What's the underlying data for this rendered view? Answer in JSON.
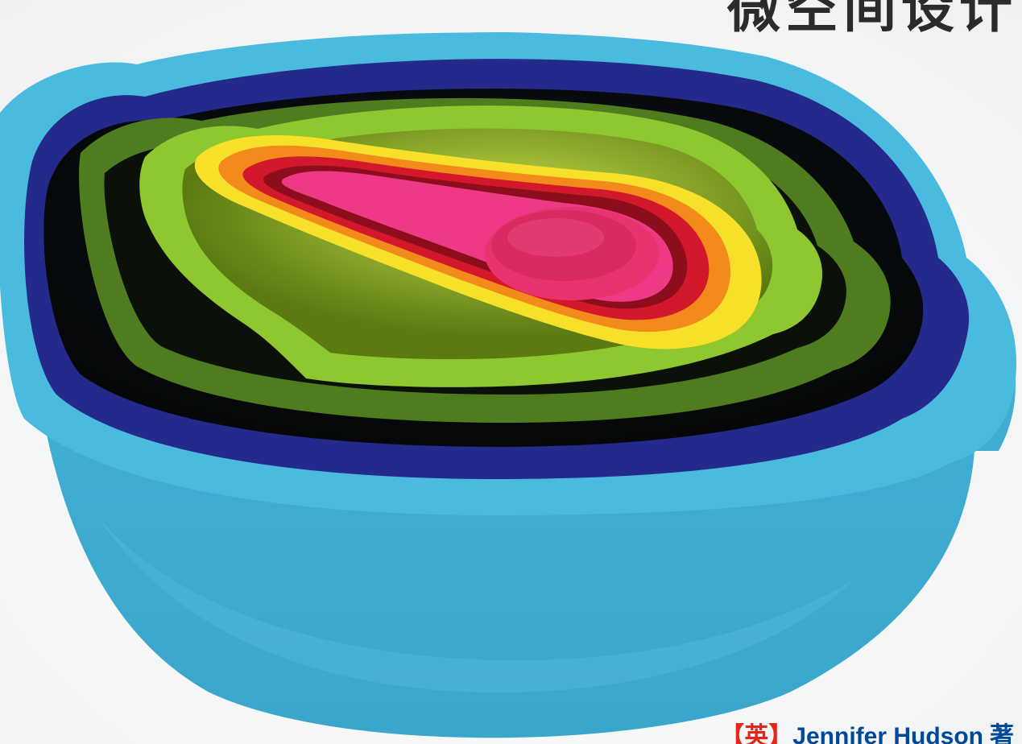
{
  "cover": {
    "title": "微空间设计",
    "author_nation": "【英】",
    "author_name": "Jennifer Hudson",
    "author_role": "著"
  },
  "illustration": {
    "subject": "nested-mixing-bowls-and-measuring-cups-photo",
    "colors": {
      "outer_bowl": "#3eaed4",
      "navy_bowl": "#232a8c",
      "dark_green_bowl": "#4e7c1e",
      "lime_bowl": "#8ec730",
      "yellow_cup": "#f7e02a",
      "orange_cup": "#f28a1c",
      "red_cup": "#d4182c",
      "pink_cup": "#ee3a86"
    }
  }
}
